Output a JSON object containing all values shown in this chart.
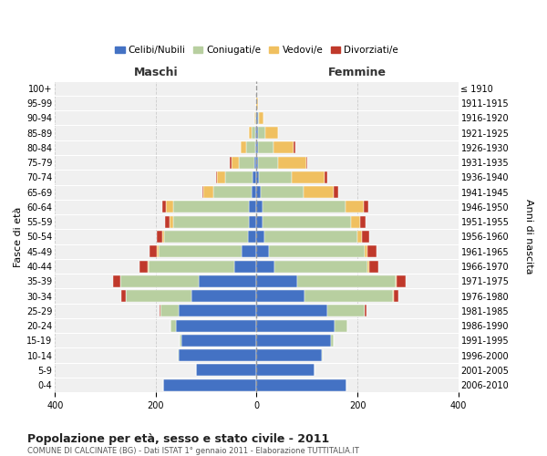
{
  "age_groups": [
    "0-4",
    "5-9",
    "10-14",
    "15-19",
    "20-24",
    "25-29",
    "30-34",
    "35-39",
    "40-44",
    "45-49",
    "50-54",
    "55-59",
    "60-64",
    "65-69",
    "70-74",
    "75-79",
    "80-84",
    "85-89",
    "90-94",
    "95-99",
    "100+"
  ],
  "birth_years": [
    "2006-2010",
    "2001-2005",
    "1996-2000",
    "1991-1995",
    "1986-1990",
    "1981-1985",
    "1976-1980",
    "1971-1975",
    "1966-1970",
    "1961-1965",
    "1956-1960",
    "1951-1955",
    "1946-1950",
    "1941-1945",
    "1936-1940",
    "1931-1935",
    "1926-1930",
    "1921-1925",
    "1916-1920",
    "1911-1915",
    "≤ 1910"
  ],
  "male": {
    "celibi": [
      185,
      120,
      155,
      150,
      160,
      155,
      130,
      115,
      45,
      30,
      18,
      15,
      15,
      10,
      8,
      5,
      3,
      2,
      0,
      0,
      0
    ],
    "coniugati": [
      0,
      0,
      2,
      2,
      10,
      35,
      130,
      155,
      170,
      165,
      165,
      150,
      150,
      75,
      55,
      30,
      18,
      8,
      2,
      0,
      0
    ],
    "vedovi": [
      0,
      0,
      0,
      0,
      0,
      0,
      0,
      0,
      2,
      3,
      5,
      8,
      15,
      20,
      15,
      15,
      10,
      5,
      2,
      0,
      0
    ],
    "divorziati": [
      0,
      0,
      0,
      0,
      0,
      2,
      8,
      15,
      15,
      15,
      10,
      8,
      8,
      3,
      3,
      3,
      0,
      0,
      0,
      0,
      0
    ]
  },
  "female": {
    "nubili": [
      178,
      115,
      130,
      148,
      155,
      140,
      95,
      80,
      35,
      25,
      15,
      12,
      12,
      8,
      5,
      3,
      3,
      2,
      2,
      0,
      0
    ],
    "coniugate": [
      0,
      0,
      2,
      5,
      25,
      75,
      175,
      195,
      185,
      190,
      185,
      175,
      165,
      85,
      65,
      40,
      30,
      15,
      3,
      0,
      0
    ],
    "vedove": [
      0,
      0,
      0,
      0,
      0,
      0,
      2,
      2,
      3,
      5,
      8,
      18,
      35,
      60,
      65,
      55,
      40,
      25,
      8,
      2,
      0
    ],
    "divorziate": [
      0,
      0,
      0,
      0,
      0,
      3,
      10,
      18,
      18,
      18,
      15,
      12,
      10,
      8,
      5,
      3,
      3,
      0,
      0,
      0,
      0
    ]
  },
  "colors": {
    "celibi": "#4472c4",
    "coniugati": "#b8cfa0",
    "vedovi": "#f0c060",
    "divorziati": "#c0392b"
  },
  "xlim": 400,
  "title": "Popolazione per età, sesso e stato civile - 2011",
  "subtitle": "COMUNE DI CALCINATE (BG) - Dati ISTAT 1° gennaio 2011 - Elaborazione TUTTITALIA.IT",
  "ylabel_left": "Fasce di età",
  "ylabel_right": "Anni di nascita",
  "xlabel_left": "Maschi",
  "xlabel_right": "Femmine",
  "legend_labels": [
    "Celibi/Nubili",
    "Coniugati/e",
    "Vedovi/e",
    "Divorziati/e"
  ],
  "background_color": "#ffffff",
  "plot_bg_color": "#f0f0f0",
  "bar_edge_color": "#ffffff",
  "grid_color": "#cccccc"
}
